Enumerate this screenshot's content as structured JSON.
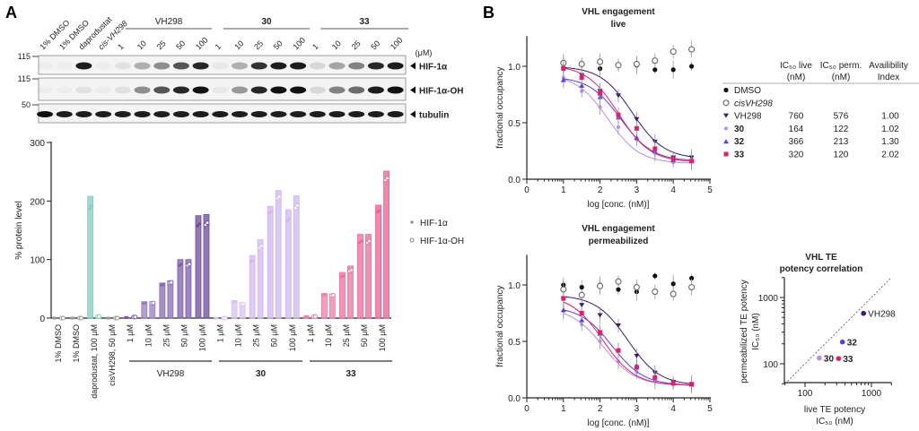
{
  "panel_labels": {
    "a": "A",
    "b": "B"
  },
  "blot": {
    "lanes": [
      "1% DMSO",
      "1% DMSO",
      "daprodustat",
      "cis-VH298",
      "1",
      "10",
      "25",
      "50",
      "100",
      "1",
      "10",
      "25",
      "50",
      "100",
      "1",
      "10",
      "25",
      "50",
      "100"
    ],
    "groups": [
      "VH298",
      "30",
      "33"
    ],
    "unit": "(μM)",
    "rows": [
      {
        "label": "HIF-1α",
        "marker": "115",
        "band_intensity": [
          0.03,
          0.03,
          0.95,
          0.03,
          0.08,
          0.3,
          0.45,
          0.7,
          0.9,
          0.05,
          0.3,
          0.85,
          0.95,
          0.95,
          0.12,
          0.35,
          0.5,
          0.9,
          0.95
        ]
      },
      {
        "label": "HIF-1α-OH",
        "marker": "115",
        "band_intensity": [
          0.03,
          0.03,
          0.08,
          0.03,
          0.08,
          0.45,
          0.7,
          0.9,
          1.0,
          0.05,
          0.4,
          0.9,
          1.0,
          1.0,
          0.12,
          0.5,
          0.6,
          0.95,
          1.0
        ]
      },
      {
        "label": "tubulin",
        "marker": "50",
        "band_intensity": [
          1,
          0.95,
          0.95,
          0.95,
          0.95,
          0.95,
          0.95,
          0.95,
          0.95,
          0.95,
          0.95,
          0.95,
          0.95,
          0.95,
          0.95,
          0.95,
          0.95,
          0.95,
          0.95
        ]
      }
    ]
  },
  "chart_data": [
    {
      "type": "bar",
      "ylabel": "% protein level",
      "ylim": [
        0,
        300
      ],
      "yticks": [
        "0",
        "100",
        "200",
        "300"
      ],
      "categories": [
        "1% DMSO",
        "1% DMSO",
        "daprodustat, 100 μM",
        "cisVH298, 50 μM",
        "1 μM",
        "10 μM",
        "25 μM",
        "50 μM",
        "100 μM",
        "1 μM",
        "10 μM",
        "25 μM",
        "50 μM",
        "100 μM",
        "1 μM",
        "10 μM",
        "25 μM",
        "50 μM",
        "100 μM"
      ],
      "category_groups": [
        {
          "label": "VH298",
          "from": 4,
          "to": 8
        },
        {
          "label": "30",
          "from": 9,
          "to": 13
        },
        {
          "label": "33",
          "from": 14,
          "to": 18
        }
      ],
      "series": [
        {
          "name": "HIF-1α",
          "values": [
            0,
            0,
            208,
            0,
            1,
            28,
            60,
            100,
            175,
            0,
            30,
            107,
            191,
            185,
            3,
            42,
            78,
            143,
            193
          ]
        },
        {
          "name": "HIF-1α-OH",
          "values": [
            0,
            0,
            3,
            0,
            2,
            28,
            64,
            100,
            177,
            0,
            26,
            134,
            218,
            209,
            3,
            41,
            89,
            143,
            251
          ]
        }
      ],
      "bar_colors": [
        "#cccccc",
        "#cccccc",
        "#7ecfc6",
        "#cccccc",
        "#7a5aa6",
        "#9a7cc4",
        "#8a6ab8",
        "#7d5cae",
        "#6c4b9e",
        "#d7c2f3",
        "#d7c2f3",
        "#d2b8f2",
        "#d0b5f2",
        "#d0b5f2",
        "#f27ea6",
        "#f27ea6",
        "#f0709c",
        "#f06a97",
        "#ee5f8f"
      ],
      "legend": {
        "position": "right",
        "entries": [
          "HIF-1α",
          "HIF-1α-OH"
        ]
      }
    },
    {
      "type": "scatter",
      "title": [
        "VHL engagement",
        "live"
      ],
      "xlabel": "log [conc. (nM)]",
      "ylabel": "fractional occupancy",
      "xlim": [
        0,
        5
      ],
      "ylim": [
        0,
        1.25
      ],
      "xticks": [
        "0",
        "1",
        "2",
        "3",
        "4",
        "5"
      ],
      "yticks": [
        "0.0",
        "0.5",
        "1.0"
      ],
      "x": [
        1,
        1.5,
        2,
        2.5,
        3,
        3.5,
        4,
        4.5
      ],
      "series": [
        {
          "name": "DMSO",
          "values": [
            1.02,
            1.02,
            0.98,
            1.01,
            1.01,
            0.97,
            0.97,
            1.0
          ]
        },
        {
          "name": "cisVH298",
          "values": [
            1.03,
            1.02,
            1.04,
            1.01,
            1.02,
            1.05,
            1.13,
            1.15
          ]
        },
        {
          "name": "VH298",
          "values": [
            0.97,
            0.92,
            0.78,
            0.74,
            0.53,
            0.33,
            0.19,
            0.19
          ]
        },
        {
          "name": "30",
          "values": [
            0.9,
            0.78,
            0.64,
            0.46,
            0.35,
            0.23,
            0.15,
            0.16
          ]
        },
        {
          "name": "32",
          "values": [
            0.88,
            0.83,
            0.73,
            0.55,
            0.37,
            0.25,
            0.17,
            0.17
          ]
        },
        {
          "name": "33",
          "values": [
            0.98,
            0.9,
            0.76,
            0.57,
            0.45,
            0.27,
            0.18,
            0.16
          ]
        }
      ]
    },
    {
      "type": "scatter",
      "title": [
        "VHL engagement",
        "permeabilized"
      ],
      "xlabel": "log [conc. (nM)]",
      "ylabel": "fractional occupancy",
      "xlim": [
        0,
        5
      ],
      "ylim": [
        0,
        1.25
      ],
      "xticks": [
        "0",
        "1",
        "2",
        "3",
        "4",
        "5"
      ],
      "yticks": [
        "0.0",
        "0.5",
        "1.0"
      ],
      "x": [
        1,
        1.5,
        2,
        2.5,
        3,
        3.5,
        4,
        4.5
      ],
      "series": [
        {
          "name": "DMSO",
          "values": [
            1.0,
            0.98,
            1.0,
            0.96,
            0.94,
            1.08,
            1.01,
            1.06
          ]
        },
        {
          "name": "cisVH298",
          "values": [
            0.96,
            0.91,
            0.99,
            1.03,
            0.98,
            0.94,
            0.92,
            0.98
          ]
        },
        {
          "name": "VH298",
          "values": [
            0.88,
            0.82,
            0.73,
            0.64,
            0.37,
            0.22,
            0.14,
            0.12
          ]
        },
        {
          "name": "30",
          "values": [
            0.77,
            0.65,
            0.5,
            0.32,
            0.23,
            0.15,
            0.12,
            0.12
          ]
        },
        {
          "name": "32",
          "values": [
            0.78,
            0.69,
            0.57,
            0.42,
            0.29,
            0.19,
            0.13,
            0.12
          ]
        },
        {
          "name": "33",
          "values": [
            0.88,
            0.75,
            0.58,
            0.42,
            0.27,
            0.18,
            0.13,
            0.12
          ]
        }
      ]
    },
    {
      "type": "scatter",
      "title": [
        "VHL TE",
        "potency correlation"
      ],
      "xlabel": [
        "live TE potency",
        "IC50 (nM)"
      ],
      "ylabel": [
        "permeabilized TE potency",
        "IC50 (nM)"
      ],
      "xscale": "log",
      "yscale": "log",
      "xlim": [
        50,
        2000
      ],
      "ylim": [
        50,
        2000
      ],
      "xticks": [
        "100",
        "1000"
      ],
      "yticks": [
        "100",
        "1000"
      ],
      "identity_line": true,
      "points": [
        {
          "label": "VH298",
          "x": 760,
          "y": 576
        },
        {
          "label": "32",
          "x": 366,
          "y": 213
        },
        {
          "label": "30",
          "x": 164,
          "y": 122
        },
        {
          "label": "33",
          "x": 320,
          "y": 120
        }
      ]
    }
  ],
  "table": {
    "headers": [
      "IC50 live (nM)",
      "IC50 perm. (nM)",
      "Availibility Index"
    ],
    "rows": [
      {
        "name": "DMSO",
        "live": "",
        "perm": "",
        "index": ""
      },
      {
        "name": "cisVH298",
        "live": "",
        "perm": "",
        "index": ""
      },
      {
        "name": "VH298",
        "live": "760",
        "perm": "576",
        "index": "1.00"
      },
      {
        "name": "30",
        "live": "164",
        "perm": "122",
        "index": "1.02"
      },
      {
        "name": "32",
        "live": "366",
        "perm": "213",
        "index": "1.30"
      },
      {
        "name": "33",
        "live": "320",
        "perm": "120",
        "index": "2.02"
      }
    ]
  },
  "colors": {
    "DMSO": "#111111",
    "cisVH298": "#666666",
    "VH298": "#3b1c6e",
    "30": "#b98be8",
    "32": "#5b3fe0",
    "33": "#e2206a",
    "daprodustat": "#7ecfc6"
  }
}
